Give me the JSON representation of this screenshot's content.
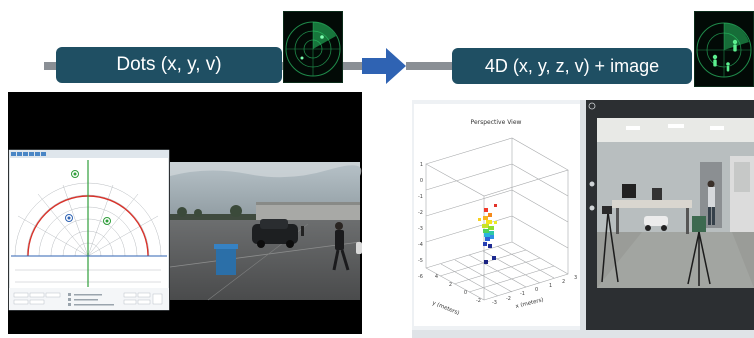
{
  "stages": [
    {
      "label": "Dots (x, y, v)"
    },
    {
      "label": "4D (x, y, z, v) + image"
    }
  ],
  "plot": {
    "title": "Perspective View",
    "y_axis_label": "y (meters)",
    "x_axis_label": "x (meters)",
    "z_ticks": [
      "1",
      "0",
      "-1",
      "-2",
      "-3",
      "-4",
      "-5",
      "-6"
    ],
    "y_ticks": [
      "4",
      "2",
      "0",
      "-2"
    ],
    "x_ticks": [
      "-3",
      "-2",
      "-1",
      "0",
      "1",
      "2",
      "3"
    ]
  },
  "colors": {
    "pill": "#1f4f63",
    "rail": "#8a8f95",
    "arrow": "#2f63b3",
    "radar_green": "#2ad06a"
  }
}
